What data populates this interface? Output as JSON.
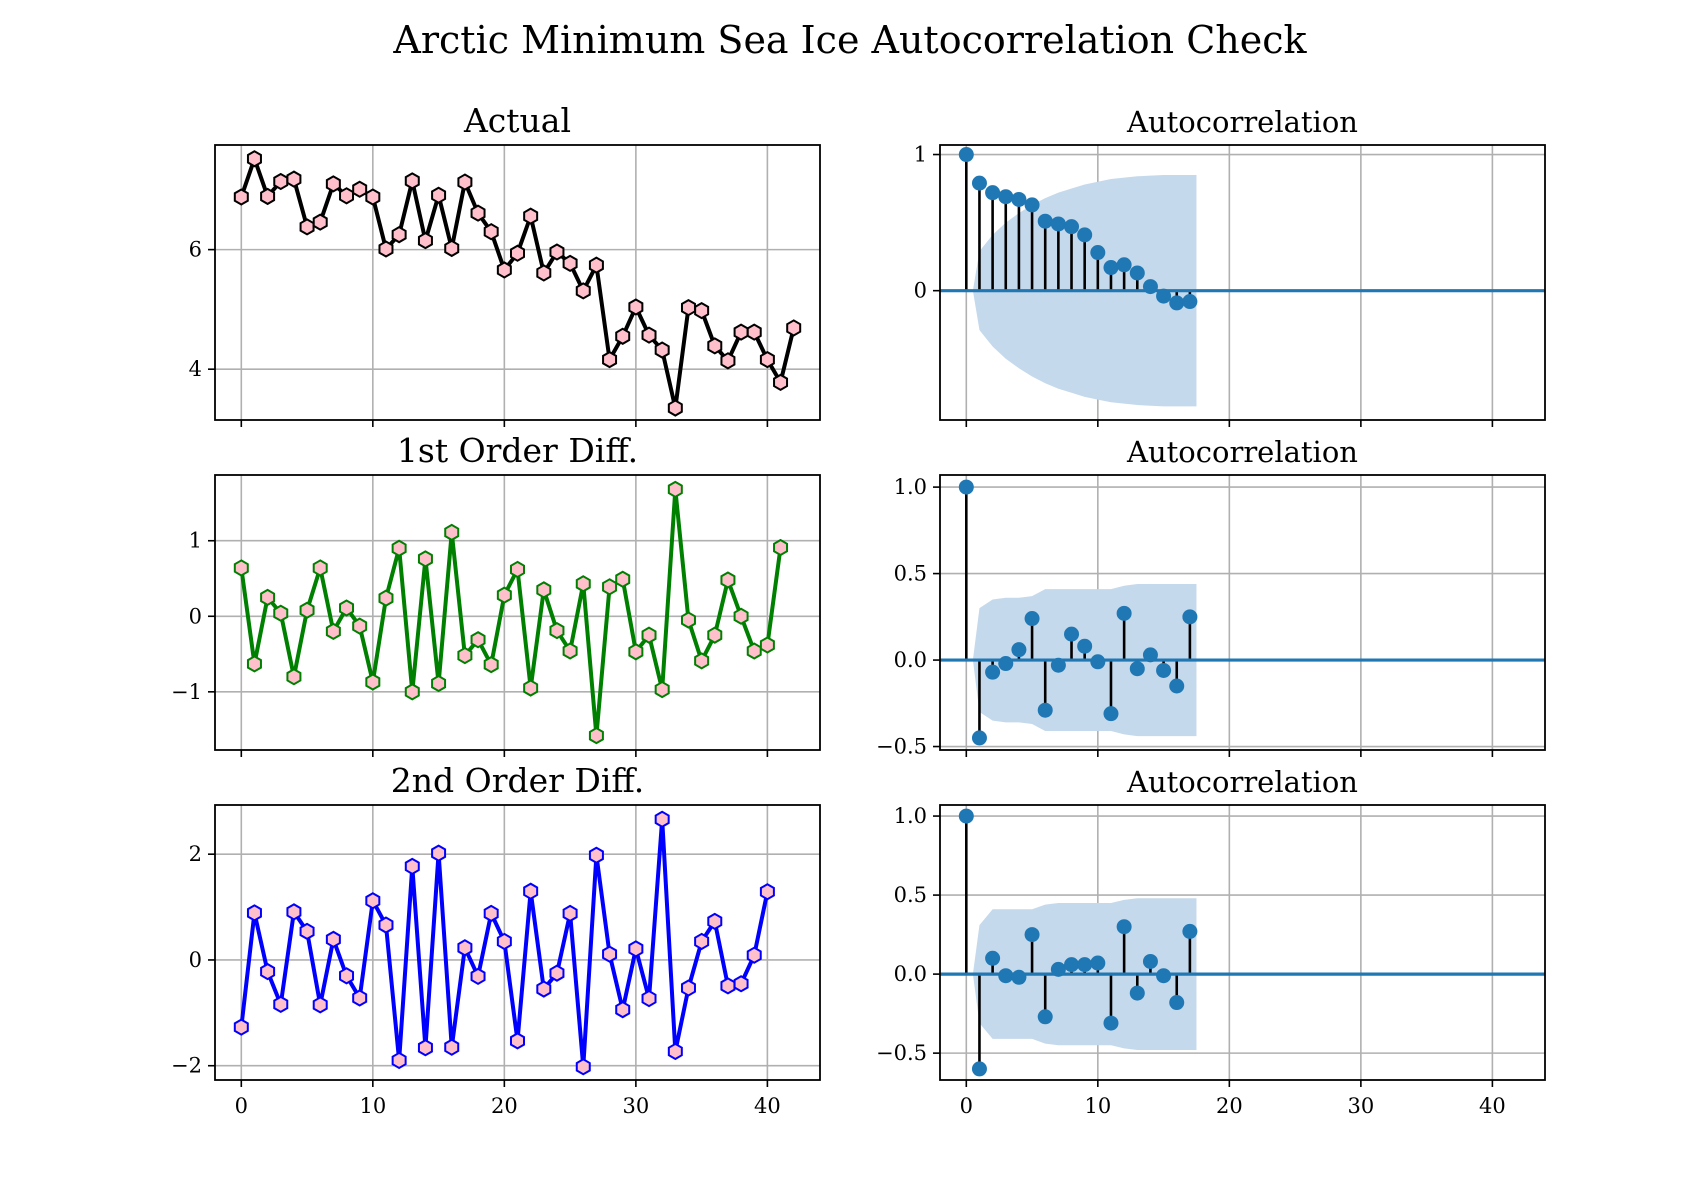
{
  "figure": {
    "title": "Arctic Minimum Sea Ice Autocorrelation Check"
  },
  "chart_data": [
    {
      "type": "line",
      "title": "Actual",
      "xlim": [
        -2,
        44
      ],
      "ylim": [
        3.15,
        7.75
      ],
      "xticks": [
        0,
        10,
        20,
        30,
        40
      ],
      "yticks": [
        4,
        6
      ],
      "show_x_tick_labels": false,
      "grid": true,
      "line_color": "#000000",
      "marker_face": "#ffc0cb",
      "marker_edge": "#000000",
      "x": [
        0,
        1,
        2,
        3,
        4,
        5,
        6,
        7,
        8,
        9,
        10,
        11,
        12,
        13,
        14,
        15,
        16,
        17,
        18,
        19,
        20,
        21,
        22,
        23,
        24,
        25,
        26,
        27,
        28,
        29,
        30,
        31,
        32,
        33,
        34,
        35,
        36,
        37,
        38,
        39,
        40,
        41,
        42
      ],
      "values": [
        6.88,
        7.52,
        6.89,
        7.14,
        7.18,
        6.38,
        6.46,
        7.1,
        6.9,
        7.01,
        6.88,
        6.01,
        6.25,
        7.15,
        6.15,
        6.91,
        6.02,
        7.13,
        6.61,
        6.3,
        5.66,
        5.94,
        6.56,
        5.61,
        5.96,
        5.77,
        5.31,
        5.74,
        4.16,
        4.55,
        5.04,
        4.57,
        4.32,
        3.35,
        5.03,
        4.98,
        4.39,
        4.14,
        4.62,
        4.62,
        4.16,
        3.78,
        4.69
      ]
    },
    {
      "type": "stem",
      "title": "Autocorrelation",
      "xlim": [
        -2,
        44
      ],
      "ylim": [
        -0.95,
        1.07
      ],
      "xticks": [
        0,
        10,
        20,
        30,
        40
      ],
      "yticks": [
        0,
        1
      ],
      "show_x_tick_labels": false,
      "grid": true,
      "point_color": "#1f77b4",
      "confidence_band_color": "#c5d9ec",
      "lags": [
        0,
        1,
        2,
        3,
        4,
        5,
        6,
        7,
        8,
        9,
        10,
        11,
        12,
        13,
        14,
        15,
        16,
        17
      ],
      "values": [
        1.0,
        0.79,
        0.72,
        0.69,
        0.67,
        0.63,
        0.51,
        0.49,
        0.47,
        0.41,
        0.28,
        0.17,
        0.19,
        0.13,
        0.03,
        -0.04,
        -0.09,
        -0.08
      ],
      "confidence_band": [
        0.0,
        0.29,
        0.41,
        0.5,
        0.57,
        0.63,
        0.68,
        0.72,
        0.75,
        0.78,
        0.8,
        0.82,
        0.83,
        0.84,
        0.845,
        0.85,
        0.85,
        0.85,
        0.85
      ],
      "confidence_band_x": [
        0.5,
        1,
        2,
        3,
        4,
        5,
        6,
        7,
        8,
        9,
        10,
        11,
        12,
        13,
        14,
        15,
        16,
        17,
        17.5
      ]
    },
    {
      "type": "line",
      "title": "1st Order Diff.",
      "xlim": [
        -2,
        44
      ],
      "ylim": [
        -1.77,
        1.87
      ],
      "xticks": [
        0,
        10,
        20,
        30,
        40
      ],
      "yticks": [
        -1,
        0,
        1
      ],
      "show_x_tick_labels": false,
      "grid": true,
      "line_color": "#008000",
      "marker_face": "#ffc0cb",
      "marker_edge": "#008000",
      "x": [
        0,
        1,
        2,
        3,
        4,
        5,
        6,
        7,
        8,
        9,
        10,
        11,
        12,
        13,
        14,
        15,
        16,
        17,
        18,
        19,
        20,
        21,
        22,
        23,
        24,
        25,
        26,
        27,
        28,
        29,
        30,
        31,
        32,
        33,
        34,
        35,
        36,
        37,
        38,
        39,
        40,
        41
      ],
      "values": [
        0.64,
        -0.63,
        0.25,
        0.04,
        -0.8,
        0.08,
        0.64,
        -0.2,
        0.11,
        -0.13,
        -0.87,
        0.24,
        0.9,
        -1.0,
        0.76,
        -0.89,
        1.11,
        -0.52,
        -0.31,
        -0.64,
        0.28,
        0.62,
        -0.95,
        0.35,
        -0.19,
        -0.46,
        0.43,
        -1.58,
        0.39,
        0.49,
        -0.47,
        -0.25,
        -0.97,
        1.68,
        -0.05,
        -0.59,
        -0.25,
        0.48,
        0.0,
        -0.46,
        -0.38,
        0.91
      ]
    },
    {
      "type": "stem",
      "title": "Autocorrelation",
      "xlim": [
        -2,
        44
      ],
      "ylim": [
        -0.52,
        1.07
      ],
      "xticks": [
        0,
        10,
        20,
        30,
        40
      ],
      "yticks": [
        -0.5,
        0.0,
        0.5,
        1.0
      ],
      "show_x_tick_labels": false,
      "grid": true,
      "point_color": "#1f77b4",
      "confidence_band_color": "#c5d9ec",
      "lags": [
        0,
        1,
        2,
        3,
        4,
        5,
        6,
        7,
        8,
        9,
        10,
        11,
        12,
        13,
        14,
        15,
        16,
        17
      ],
      "values": [
        1.0,
        -0.45,
        -0.07,
        -0.02,
        0.06,
        0.24,
        -0.29,
        -0.03,
        0.15,
        0.08,
        -0.01,
        -0.31,
        0.27,
        -0.05,
        0.03,
        -0.06,
        -0.15,
        0.25
      ],
      "confidence_band": [
        0.0,
        0.3,
        0.35,
        0.36,
        0.36,
        0.37,
        0.41,
        0.41,
        0.41,
        0.41,
        0.41,
        0.41,
        0.43,
        0.44,
        0.44,
        0.44,
        0.44,
        0.44,
        0.44
      ],
      "confidence_band_x": [
        0.5,
        1,
        2,
        3,
        4,
        5,
        6,
        7,
        8,
        9,
        10,
        11,
        12,
        13,
        14,
        15,
        16,
        17,
        17.5
      ]
    },
    {
      "type": "line",
      "title": "2nd Order Diff.",
      "xlim": [
        -2,
        44
      ],
      "ylim": [
        -2.27,
        2.93
      ],
      "xticks": [
        0,
        10,
        20,
        30,
        40
      ],
      "yticks": [
        -2,
        0,
        2
      ],
      "show_x_tick_labels": true,
      "grid": true,
      "line_color": "#0000ff",
      "marker_face": "#ffc0cb",
      "marker_edge": "#0000ff",
      "x": [
        0,
        1,
        2,
        3,
        4,
        5,
        6,
        7,
        8,
        9,
        10,
        11,
        12,
        13,
        14,
        15,
        16,
        17,
        18,
        19,
        20,
        21,
        22,
        23,
        24,
        25,
        26,
        27,
        28,
        29,
        30,
        31,
        32,
        33,
        34,
        35,
        36,
        37,
        38,
        39,
        40
      ],
      "values": [
        -1.27,
        0.89,
        -0.22,
        -0.84,
        0.91,
        0.54,
        -0.85,
        0.39,
        -0.3,
        -0.72,
        1.12,
        0.66,
        -1.9,
        1.77,
        -1.66,
        2.02,
        -1.65,
        0.23,
        -0.31,
        0.88,
        0.35,
        -1.53,
        1.3,
        -0.55,
        -0.25,
        0.88,
        -2.02,
        1.98,
        0.11,
        -0.94,
        0.21,
        -0.73,
        2.66,
        -1.73,
        -0.53,
        0.35,
        0.73,
        -0.49,
        -0.45,
        0.09,
        1.29
      ]
    },
    {
      "type": "stem",
      "title": "Autocorrelation",
      "xlim": [
        -2,
        44
      ],
      "ylim": [
        -0.67,
        1.07
      ],
      "xticks": [
        0,
        10,
        20,
        30,
        40
      ],
      "yticks": [
        -0.5,
        0.0,
        0.5,
        1.0
      ],
      "show_x_tick_labels": true,
      "grid": true,
      "point_color": "#1f77b4",
      "confidence_band_color": "#c5d9ec",
      "lags": [
        0,
        1,
        2,
        3,
        4,
        5,
        6,
        7,
        8,
        9,
        10,
        11,
        12,
        13,
        14,
        15,
        16,
        17
      ],
      "values": [
        1.0,
        -0.6,
        0.1,
        -0.01,
        -0.02,
        0.25,
        -0.27,
        0.03,
        0.06,
        0.06,
        0.07,
        -0.31,
        0.3,
        -0.12,
        0.08,
        -0.01,
        -0.18,
        0.27
      ],
      "confidence_band": [
        0.0,
        0.31,
        0.41,
        0.41,
        0.41,
        0.41,
        0.44,
        0.45,
        0.45,
        0.45,
        0.45,
        0.45,
        0.47,
        0.48,
        0.48,
        0.48,
        0.48,
        0.48,
        0.48
      ],
      "confidence_band_x": [
        0.5,
        1,
        2,
        3,
        4,
        5,
        6,
        7,
        8,
        9,
        10,
        11,
        12,
        13,
        14,
        15,
        16,
        17,
        17.5
      ]
    }
  ]
}
